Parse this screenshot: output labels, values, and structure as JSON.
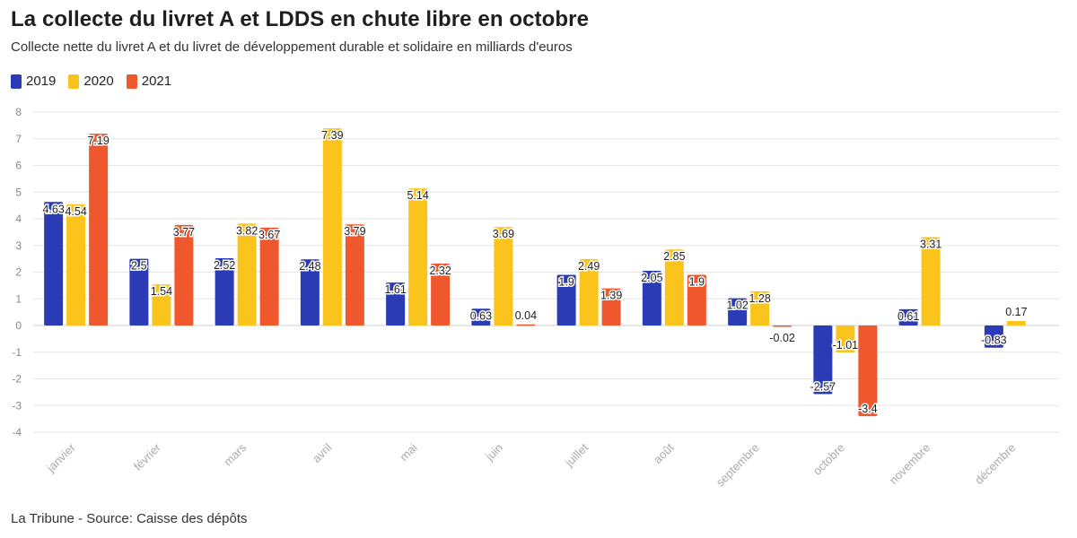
{
  "header": {
    "title": "La collecte du livret A et LDDS en chute libre en octobre",
    "subtitle": "Collecte nette du livret A et du livret de développement durable et solidaire en milliards d'euros"
  },
  "legend": [
    {
      "label": "2019",
      "color": "#2b3bb5"
    },
    {
      "label": "2020",
      "color": "#fbc41d"
    },
    {
      "label": "2021",
      "color": "#ef572c"
    }
  ],
  "footer": {
    "source": "La Tribune - Source: Caisse des dépôts"
  },
  "chart_data": {
    "type": "bar",
    "categories": [
      "janvier",
      "février",
      "mars",
      "avril",
      "mai",
      "juin",
      "juillet",
      "août",
      "septembre",
      "octobre",
      "novembre",
      "décembre"
    ],
    "series": [
      {
        "name": "2019",
        "color": "#2b3bb5",
        "values": [
          4.63,
          2.5,
          2.52,
          2.48,
          1.61,
          0.63,
          1.9,
          2.05,
          1.02,
          -2.57,
          0.61,
          -0.83
        ]
      },
      {
        "name": "2020",
        "color": "#fbc41d",
        "values": [
          4.54,
          1.54,
          3.82,
          7.39,
          5.14,
          3.69,
          2.49,
          2.85,
          1.28,
          -1.01,
          3.31,
          0.17
        ]
      },
      {
        "name": "2021",
        "color": "#ef572c",
        "values": [
          7.19,
          3.77,
          3.67,
          3.79,
          2.32,
          0.04,
          1.39,
          1.9,
          -0.02,
          -3.4,
          null,
          null
        ]
      }
    ],
    "title": "La collecte du livret A et LDDS en chute libre en octobre",
    "xlabel": "",
    "ylabel": "",
    "ylim": [
      -4,
      8
    ],
    "yticks": [
      -4,
      -3,
      -2,
      -1,
      0,
      1,
      2,
      3,
      4,
      5,
      6,
      7,
      8
    ],
    "grid": true,
    "legend_position": "top-left"
  }
}
